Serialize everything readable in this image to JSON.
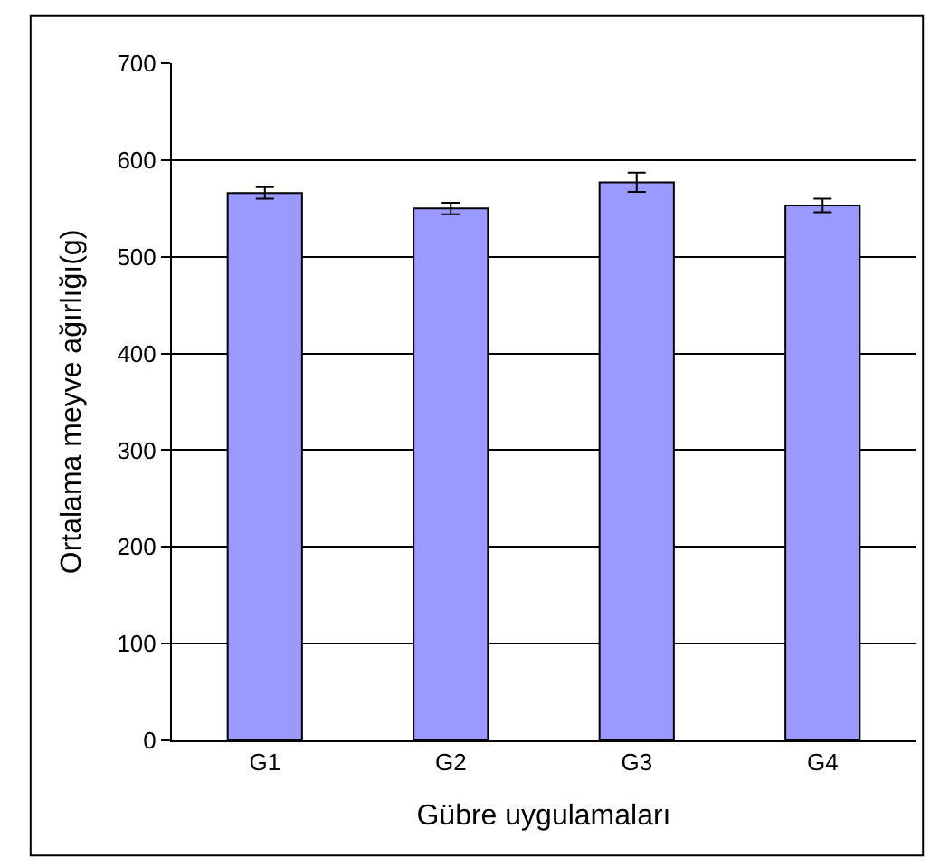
{
  "chart_data": {
    "type": "bar",
    "xlabel": "Gübre uygulamaları",
    "ylabel": "Ortalama meyve ağırlığı(g)",
    "categories": [
      "G1",
      "G2",
      "G3",
      "G4"
    ],
    "series": [
      {
        "color": "#9999ff",
        "values": [
          566,
          550,
          577,
          553
        ],
        "errors": [
          6,
          6,
          10,
          7
        ]
      }
    ],
    "ylim": [
      0,
      700
    ],
    "yticks": [
      0,
      100,
      200,
      300,
      400,
      500,
      600,
      700
    ],
    "grid": "y",
    "legend": false
  }
}
